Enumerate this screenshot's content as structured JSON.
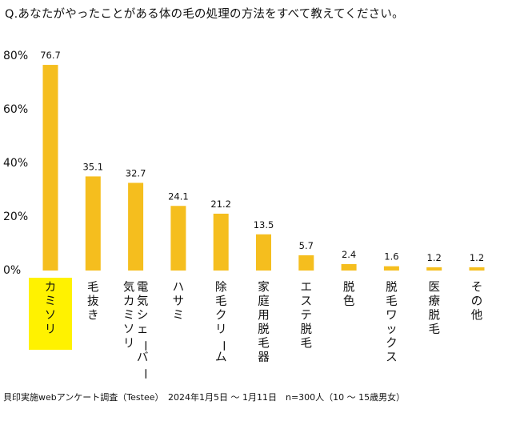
{
  "question": "Q.あなたがやったことがある体の毛の処理の方法をすべて教えてください。",
  "source": "貝印実施webアンケート調査（Testee）　2024年1月5日 ～ 1月11日　n=300人（10 ～ 15歳男女）",
  "colors": {
    "bar": "#F5BE1E",
    "highlight_background": "#FFF200",
    "text": "#111111"
  },
  "chart_data": {
    "type": "bar",
    "categories": [
      [
        "カミソリ"
      ],
      [
        "毛抜き"
      ],
      [
        "電気シェーバー",
        "気カミソリ"
      ],
      [
        "ハサミ"
      ],
      [
        "除毛クリーム"
      ],
      [
        "家庭用脱毛器"
      ],
      [
        "エステ脱毛"
      ],
      [
        "脱色"
      ],
      [
        "脱毛ワックス"
      ],
      [
        "医療脱毛"
      ],
      [
        "その他"
      ]
    ],
    "values": [
      76.7,
      35.1,
      32.7,
      24.1,
      21.2,
      13.5,
      5.7,
      2.4,
      1.6,
      1.2,
      1.2
    ],
    "y_ticks": [
      "0%",
      "20%",
      "40%",
      "60%",
      "80%"
    ],
    "ylim": [
      0,
      80
    ],
    "highlighted_category": "カミソリ",
    "title": "",
    "xlabel": "",
    "ylabel": "",
    "grid": false,
    "legend": "none",
    "category_label_orientation": "vertical"
  }
}
